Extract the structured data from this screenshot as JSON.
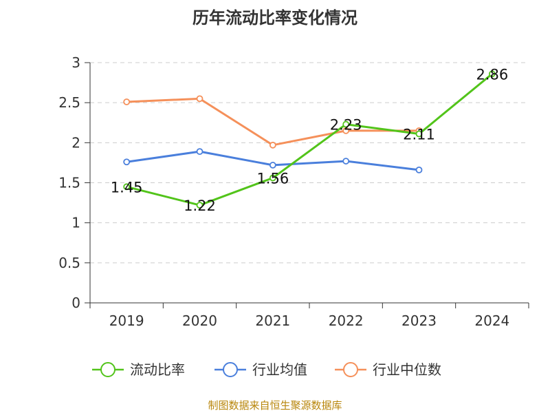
{
  "title": "历年流动比率变化情况",
  "source": "制图数据来自恒生聚源数据库",
  "chart_data": {
    "type": "line",
    "title": "历年流动比率变化情况",
    "categories": [
      "2019",
      "2020",
      "2021",
      "2022",
      "2023",
      "2024"
    ],
    "ylim": [
      0,
      3
    ],
    "yticks": [
      0,
      0.5,
      1,
      1.5,
      2,
      2.5,
      3
    ],
    "ytick_labels": [
      "0",
      "0.5",
      "1",
      "1.5",
      "2",
      "2.5",
      "3"
    ],
    "grid": true,
    "legend_position": "bottom",
    "series": [
      {
        "name": "流动比率",
        "color": "#52c41a",
        "values": [
          1.45,
          1.22,
          1.56,
          2.23,
          2.11,
          2.86
        ],
        "labels": [
          "1.45",
          "1.22",
          "1.56",
          "2.23",
          "2.11",
          "2.86"
        ]
      },
      {
        "name": "行业均值",
        "color": "#4a7fdc",
        "values": [
          1.76,
          1.89,
          1.72,
          1.77,
          1.66,
          null
        ]
      },
      {
        "name": "行业中位数",
        "color": "#f5905a",
        "values": [
          2.51,
          2.55,
          1.97,
          2.15,
          2.15,
          null
        ]
      }
    ]
  }
}
